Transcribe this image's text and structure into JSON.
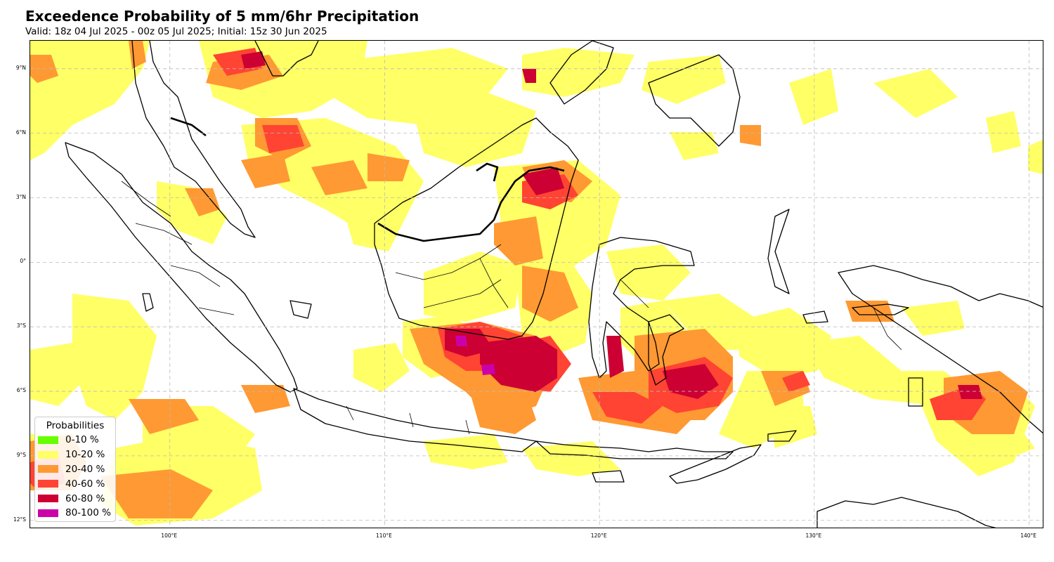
{
  "header": {
    "title": "Exceedence Probability of 5 mm/6hr Precipitation",
    "subtitle": "Valid: 18z 04 Jul 2025 - 00z 05 Jul 2025; Initial: 15z 30 Jun 2025"
  },
  "map": {
    "lon_range": [
      93.5,
      140.7
    ],
    "lat_range": [
      -12.4,
      10.3
    ],
    "lat_ticks": [
      "9°N",
      "6°N",
      "3°N",
      "0°",
      "3°S",
      "6°S",
      "9°S",
      "12°S"
    ],
    "lon_ticks": [
      "100°E",
      "110°E",
      "120°E",
      "130°E",
      "140°E"
    ],
    "grid": "dashed"
  },
  "legend": {
    "title": "Probabilities",
    "items": [
      {
        "label": "0-10 %",
        "color": "#66ff00"
      },
      {
        "label": "10-20 %",
        "color": "#ffff66"
      },
      {
        "label": "20-40 %",
        "color": "#ff9933"
      },
      {
        "label": "40-60 %",
        "color": "#ff4433"
      },
      {
        "label": "60-80 %",
        "color": "#cc0033"
      },
      {
        "label": "80-100 %",
        "color": "#cc00aa"
      }
    ]
  }
}
